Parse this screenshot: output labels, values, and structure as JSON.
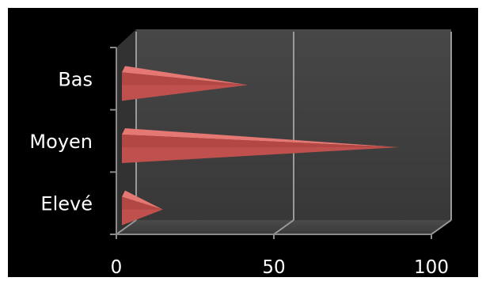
{
  "chart_data": {
    "type": "bar",
    "orientation": "horizontal",
    "style": "3d-cone",
    "categories": [
      "Bas",
      "Moyen",
      "Elevé"
    ],
    "values": [
      40,
      88,
      13
    ],
    "xlim": [
      0,
      100
    ],
    "xticks": [
      "0",
      "50",
      "100"
    ],
    "grid": true,
    "legend": "none",
    "colors": {
      "background": "#000000",
      "plot_wall": "#404040",
      "bar": "#c0504d",
      "bar_highlight": "#e67874",
      "grid": "#9a9a9a",
      "axis": "#8a8a8a",
      "text": "#ffffff"
    }
  }
}
